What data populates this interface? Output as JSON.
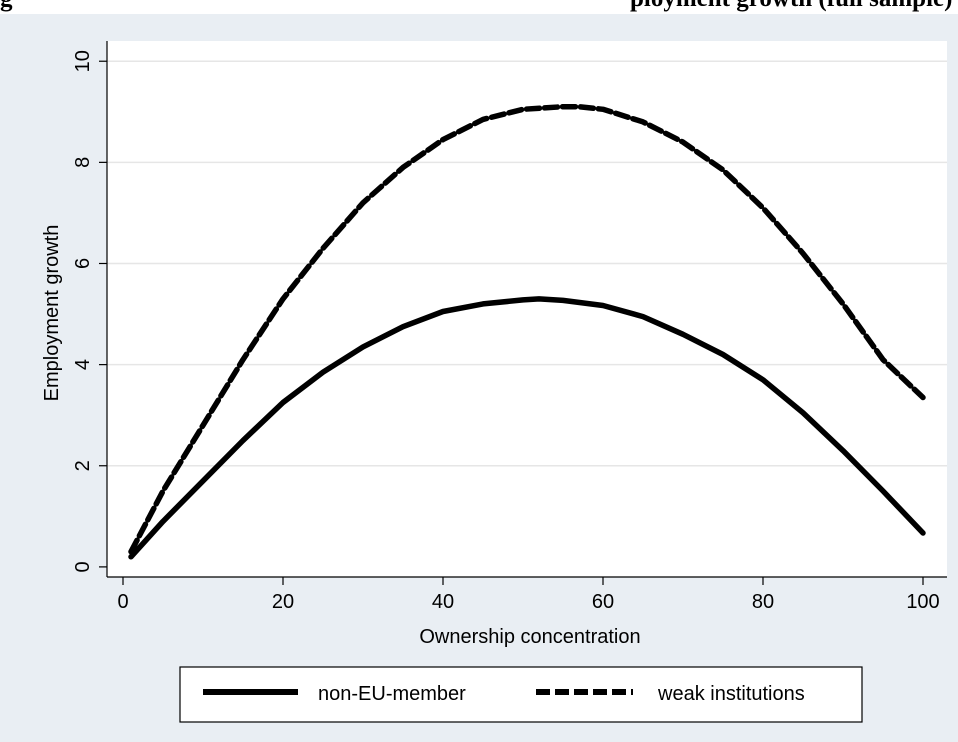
{
  "header": {
    "title_left": "g",
    "title_right": "ployment growth (full sample)"
  },
  "chart_data": {
    "type": "line",
    "title": "",
    "xlabel": "Ownership concentration",
    "ylabel": "Employment growth",
    "xlim": [
      -2,
      103
    ],
    "ylim": [
      -0.2,
      10.4
    ],
    "xticks": [
      0,
      20,
      40,
      60,
      80,
      100
    ],
    "yticks": [
      0,
      2,
      4,
      6,
      8,
      10
    ],
    "grid": "horizontal",
    "legend_position": "bottom",
    "colors": {
      "background_outer": "#ffffff",
      "plot_area": "#ffffff",
      "frame": "#e9eef3",
      "line": "#000000"
    },
    "series": [
      {
        "name": "non-EU-member",
        "style": "solid",
        "x": [
          1,
          5,
          10,
          15,
          20,
          25,
          30,
          35,
          40,
          45,
          50,
          52,
          55,
          60,
          65,
          70,
          75,
          80,
          85,
          90,
          95,
          100
        ],
        "y": [
          0.2,
          0.9,
          1.7,
          2.5,
          3.25,
          3.85,
          4.35,
          4.75,
          5.05,
          5.2,
          5.28,
          5.3,
          5.27,
          5.17,
          4.95,
          4.6,
          4.2,
          3.7,
          3.05,
          2.3,
          1.5,
          0.67
        ]
      },
      {
        "name": "weak institutions",
        "style": "dashed",
        "x": [
          1,
          5,
          10,
          15,
          20,
          25,
          30,
          35,
          40,
          45,
          50,
          55,
          57,
          60,
          65,
          70,
          75,
          80,
          85,
          90,
          95,
          100
        ],
        "y": [
          0.3,
          1.5,
          2.8,
          4.1,
          5.3,
          6.3,
          7.2,
          7.9,
          8.45,
          8.85,
          9.05,
          9.1,
          9.1,
          9.05,
          8.8,
          8.4,
          7.85,
          7.1,
          6.2,
          5.2,
          4.1,
          3.35
        ]
      }
    ]
  }
}
